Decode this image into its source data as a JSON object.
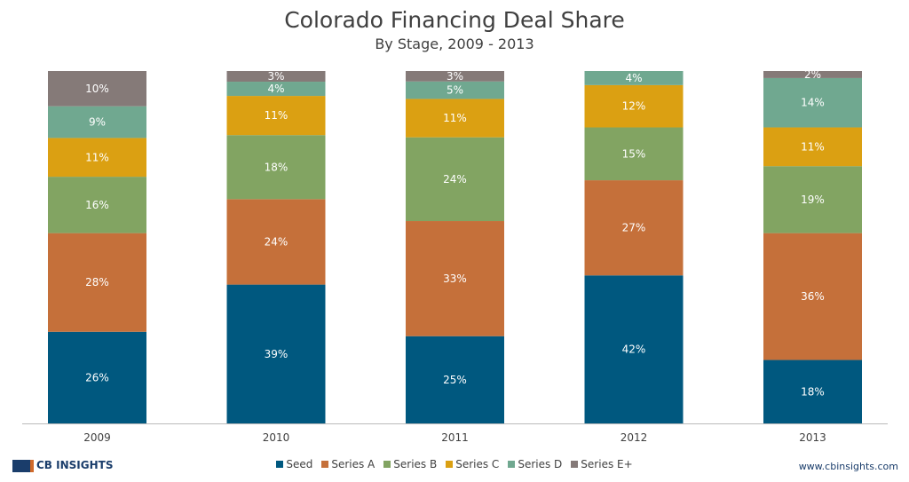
{
  "chart_data": {
    "type": "bar",
    "stacked": true,
    "title": "Colorado Financing Deal Share",
    "subtitle": "By Stage, 2009 - 2013",
    "categories": [
      "2009",
      "2010",
      "2011",
      "2012",
      "2013"
    ],
    "series": [
      {
        "name": "Seed",
        "color": "#00587f",
        "values": [
          26,
          39,
          25,
          42,
          18
        ]
      },
      {
        "name": "Series A",
        "color": "#c5703a",
        "values": [
          28,
          24,
          33,
          27,
          36
        ]
      },
      {
        "name": "Series B",
        "color": "#82a462",
        "values": [
          16,
          18,
          24,
          15,
          19
        ]
      },
      {
        "name": "Series C",
        "color": "#dba012",
        "values": [
          11,
          11,
          11,
          12,
          11
        ]
      },
      {
        "name": "Series D",
        "color": "#70a890",
        "values": [
          9,
          4,
          5,
          4,
          14
        ]
      },
      {
        "name": "Series E+",
        "color": "#857a78",
        "values": [
          10,
          3,
          3,
          0,
          2
        ]
      }
    ],
    "value_suffix": "%",
    "ylim": [
      0,
      100
    ],
    "grid": false,
    "legend": "bottom"
  },
  "footer": {
    "logo": "CB INSIGHTS",
    "url": "www.cbinsights.com"
  }
}
